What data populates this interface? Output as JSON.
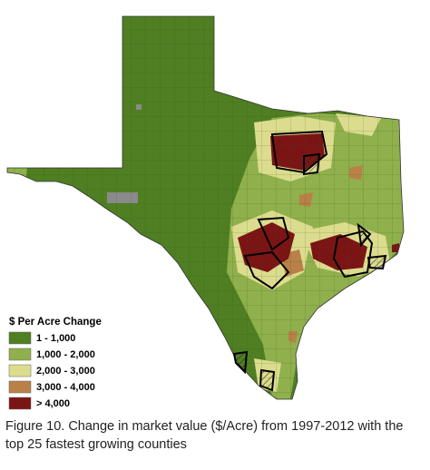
{
  "legend": {
    "title": "$ Per Acre Change",
    "items": [
      {
        "label": "1 - 1,000",
        "color": "#4f7f22"
      },
      {
        "label": "1,000 - 2,000",
        "color": "#8fb04c"
      },
      {
        "label": "2,000 - 3,000",
        "color": "#dcdc8e"
      },
      {
        "label": "3,000 - 4,000",
        "color": "#b98048"
      },
      {
        "label": "> 4,000",
        "color": "#7b1515"
      }
    ]
  },
  "caption": "Figure 10. Change in market value ($/Acre) from 1997-2012 with the top 25 fastest growing counties"
}
